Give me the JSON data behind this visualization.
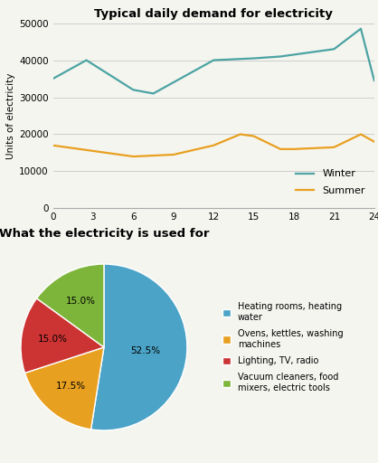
{
  "line_title": "Typical daily demand for electricity",
  "pie_title": "What the electricity is used for",
  "winter_x": [
    0,
    2.5,
    6,
    7.5,
    9,
    12,
    15,
    17,
    18,
    21,
    23,
    24
  ],
  "winter_y": [
    35000,
    40000,
    32000,
    31000,
    34000,
    40000,
    40500,
    41000,
    41500,
    43000,
    48500,
    34500
  ],
  "summer_x": [
    0,
    2,
    3,
    6,
    9,
    12,
    14,
    15,
    17,
    18,
    21,
    23,
    24
  ],
  "summer_y": [
    17000,
    16000,
    15500,
    14000,
    14500,
    17000,
    20000,
    19500,
    16000,
    16000,
    16500,
    20000,
    18000
  ],
  "winter_color": "#4BA3A3",
  "summer_color": "#E8A020",
  "ylabel": "Units of electricity",
  "ylim": [
    0,
    50000
  ],
  "yticks": [
    0,
    10000,
    20000,
    30000,
    40000,
    50000
  ],
  "xticks": [
    0,
    3,
    6,
    9,
    12,
    15,
    18,
    21,
    24
  ],
  "pie_values": [
    52.5,
    17.5,
    15.0,
    15.0
  ],
  "pie_colors": [
    "#4BA3C7",
    "#E8A020",
    "#CC3333",
    "#7DB53A"
  ],
  "pie_labels": [
    "52.5%",
    "17.5%",
    "15.0%",
    "15.0%"
  ],
  "legend_labels": [
    "Heating rooms, heating\nwater",
    "Ovens, kettles, washing\nmachines",
    "Lighting, TV, radio",
    "Vacuum cleaners, food\nmixers, electric tools"
  ],
  "pie_startangle": 90,
  "line_legend": [
    "Winter",
    "Summer"
  ],
  "bg_color": "#F5F5F0"
}
